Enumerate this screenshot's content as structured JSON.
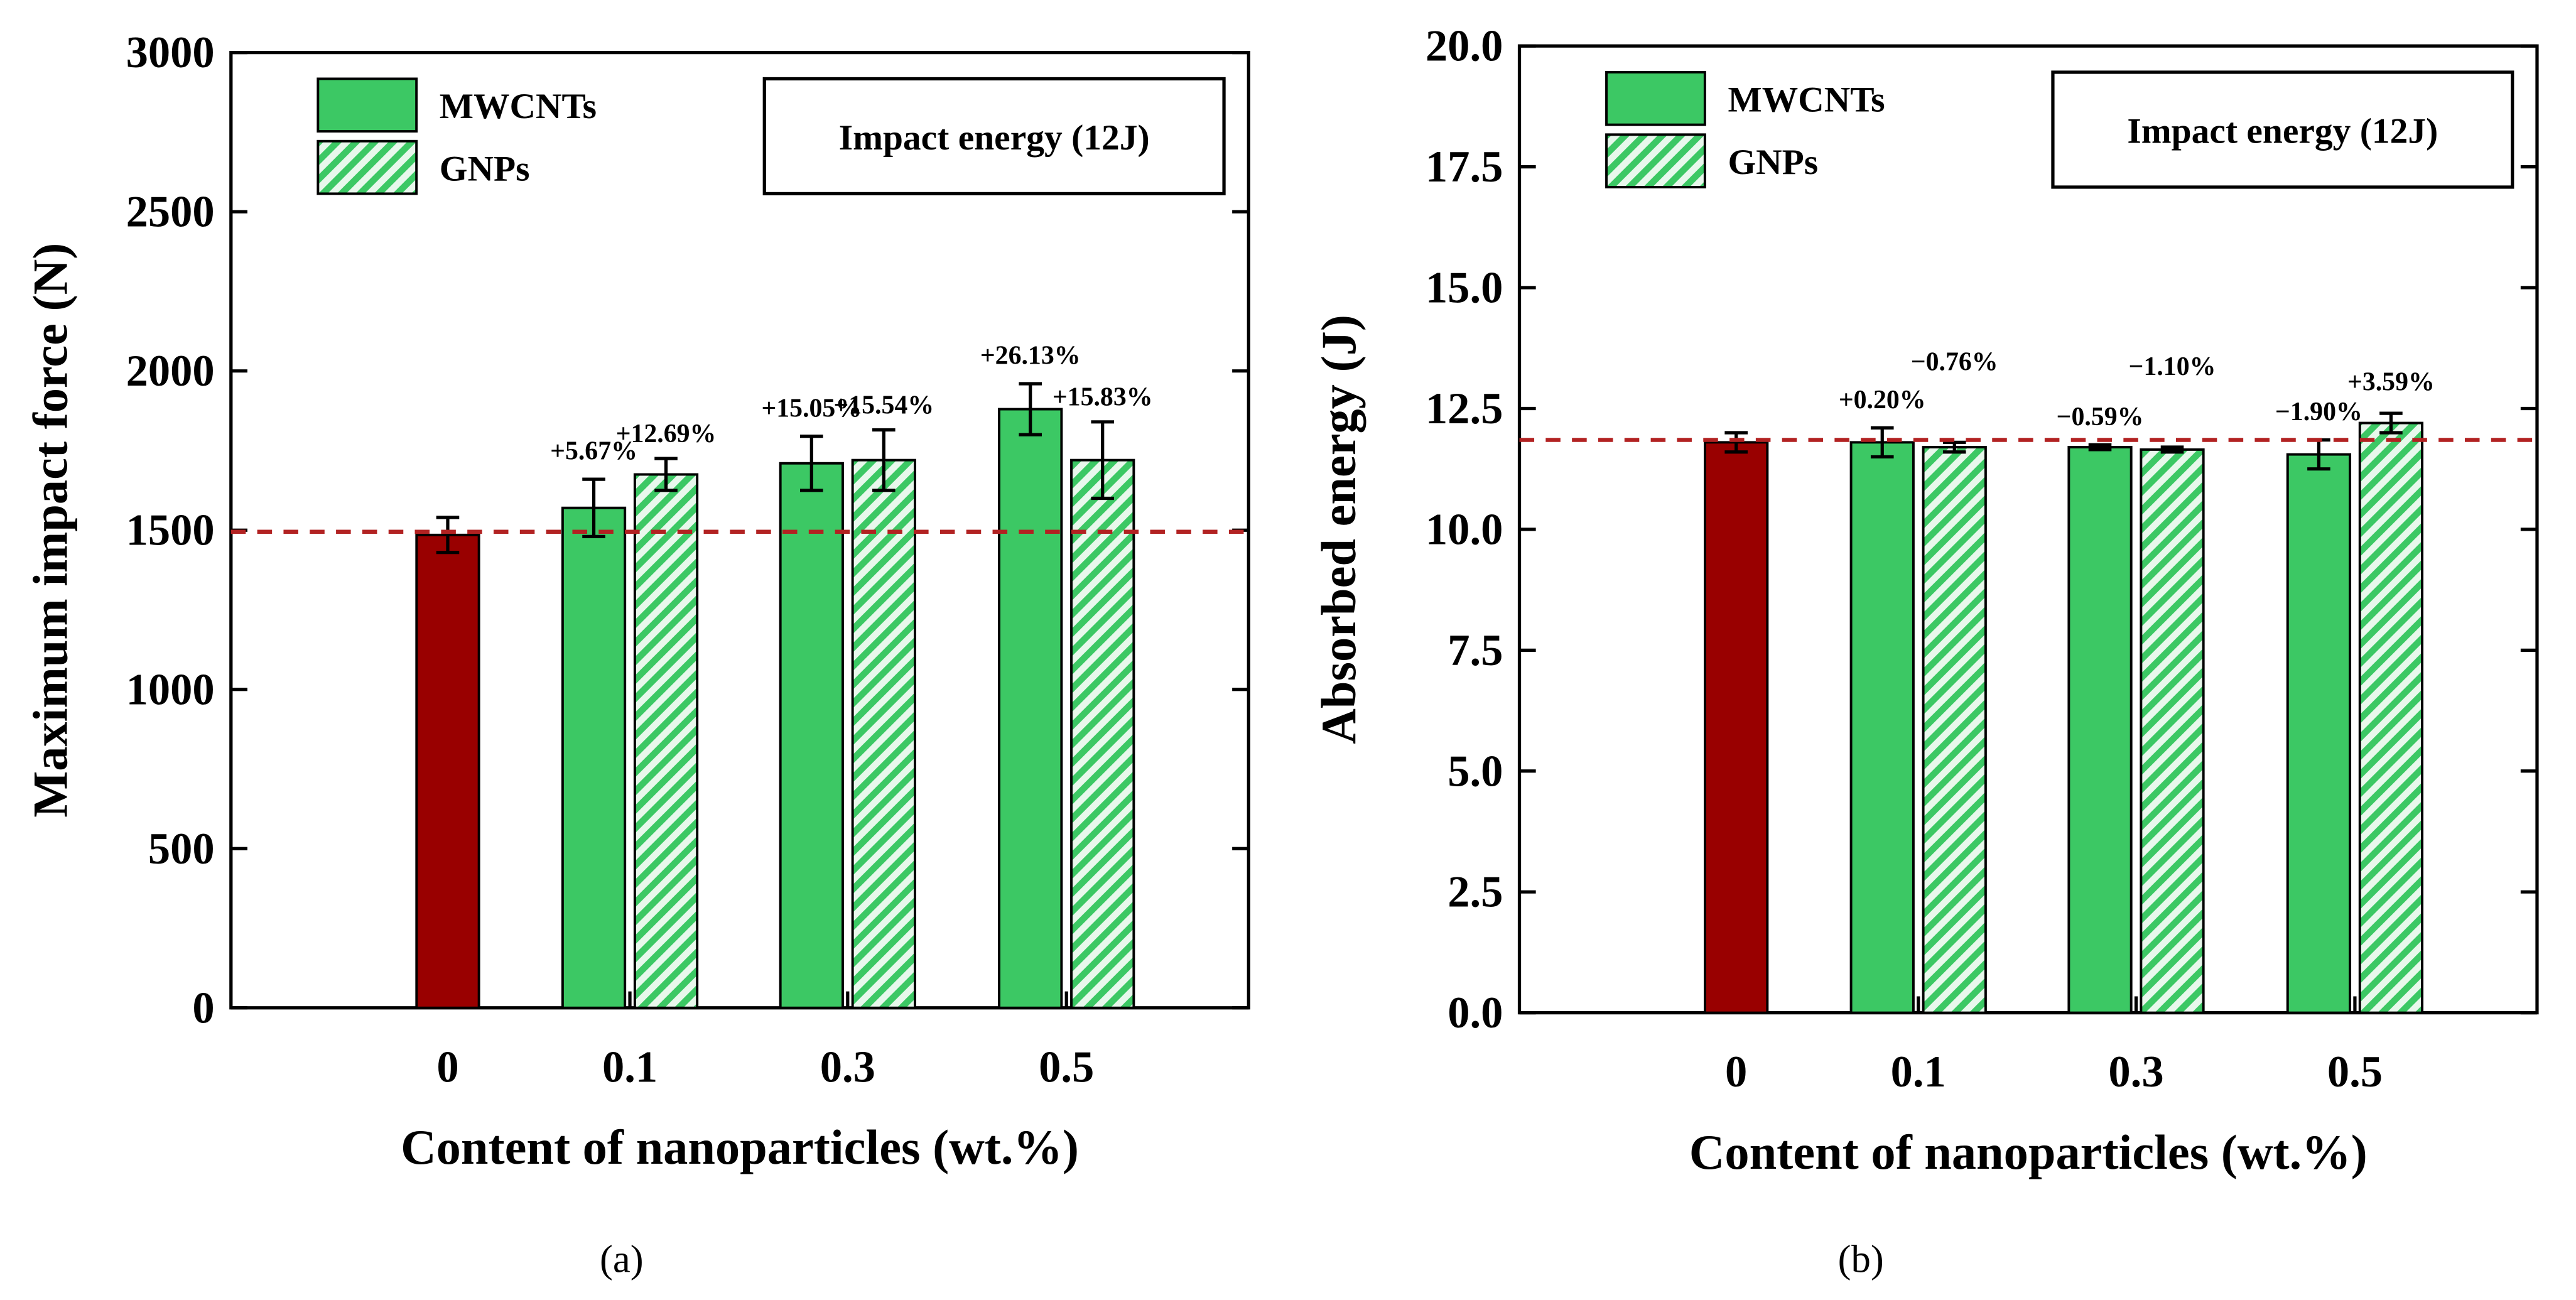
{
  "chart_data": [
    {
      "type": "bar",
      "panel": "(a)",
      "ylabel": "Maximum impact force (N)",
      "xlabel": "Content of nanoparticles (wt.%)",
      "note": "Impact energy (12J)",
      "categories": [
        "0",
        "0.1",
        "0.3",
        "0.5"
      ],
      "ylim": [
        0,
        3000
      ],
      "yticks": [
        0,
        500,
        1000,
        1500,
        2000,
        2500,
        3000
      ],
      "reference_line": 1495,
      "series": [
        {
          "color": "#990000",
          "values": [
            1485,
            null,
            null,
            null
          ],
          "errors": [
            55,
            null,
            null,
            null
          ]
        },
        {
          "name": "MWCNTs",
          "color": "#3cc864",
          "hatch": false,
          "values": [
            null,
            1570,
            1710,
            1880
          ],
          "errors": [
            null,
            90,
            85,
            80
          ],
          "labels": [
            null,
            "+5.67%",
            "+15.05%",
            "+26.13%"
          ]
        },
        {
          "name": "GNPs",
          "color": "#3cc864",
          "hatch": true,
          "values": [
            null,
            1675,
            1720,
            1720
          ],
          "errors": [
            null,
            50,
            95,
            120
          ],
          "labels": [
            null,
            "+12.69%",
            "+15.54%",
            "+15.83%"
          ]
        }
      ]
    },
    {
      "type": "bar",
      "panel": "(b)",
      "ylabel": "Absorbed energy (J)",
      "xlabel": "Content of nanoparticles (wt.%)",
      "note": "Impact energy (12J)",
      "categories": [
        "0",
        "0.1",
        "0.3",
        "0.5"
      ],
      "ylim": [
        0,
        20
      ],
      "yticks": [
        {
          "value": 0,
          "label": "0.0"
        },
        {
          "value": 2.5,
          "label": "2.5"
        },
        {
          "value": 5,
          "label": "5.0"
        },
        {
          "value": 7.5,
          "label": "7.5"
        },
        {
          "value": 10,
          "label": "10.0"
        },
        {
          "value": 12.5,
          "label": "12.5"
        },
        {
          "value": 15,
          "label": "15.0"
        },
        {
          "value": 17.5,
          "label": "17.5"
        },
        {
          "value": 20,
          "label": "20.0"
        }
      ],
      "reference_line": 11.85,
      "series": [
        {
          "color": "#990000",
          "values": [
            11.8,
            null,
            null,
            null
          ],
          "errors": [
            0.2,
            null,
            null,
            null
          ]
        },
        {
          "name": "MWCNTs",
          "color": "#3cc864",
          "hatch": false,
          "values": [
            null,
            11.8,
            11.7,
            11.55
          ],
          "errors": [
            null,
            0.3,
            0.05,
            0.3
          ],
          "labels": [
            null,
            "+0.20%",
            "−0.59%",
            "−1.90%"
          ]
        },
        {
          "name": "GNPs",
          "color": "#3cc864",
          "hatch": true,
          "values": [
            null,
            11.7,
            11.65,
            12.2
          ],
          "errors": [
            null,
            0.1,
            0.05,
            0.2
          ],
          "labels": [
            null,
            "−0.76%",
            "−1.10%",
            "+3.59%"
          ]
        }
      ]
    }
  ]
}
